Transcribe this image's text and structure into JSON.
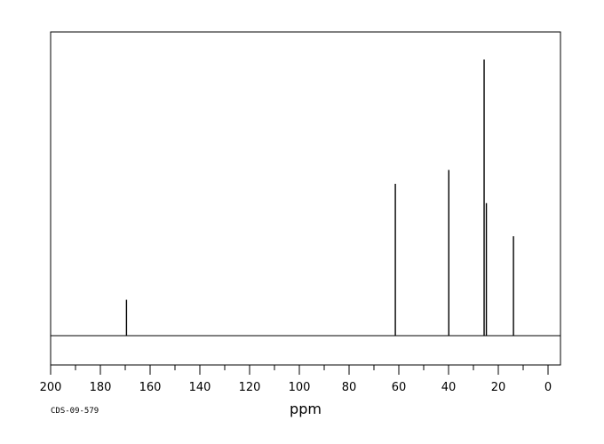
{
  "chart_data": {
    "type": "line",
    "title": "",
    "xlabel": "ppm",
    "ylabel": "",
    "xlim": [
      200,
      -5
    ],
    "x_reversed": true,
    "ylim": [
      0,
      1
    ],
    "grid": false,
    "x_ticks": [
      200,
      180,
      160,
      140,
      120,
      100,
      80,
      60,
      40,
      20,
      0
    ],
    "x_tick_labels": [
      "200",
      "180",
      "160",
      "140",
      "120",
      "100",
      "80",
      "60",
      "40",
      "20",
      "0"
    ],
    "peaks": [
      {
        "ppm": 169.5,
        "height": 0.13
      },
      {
        "ppm": 61.4,
        "height": 0.55
      },
      {
        "ppm": 39.9,
        "height": 0.6
      },
      {
        "ppm": 25.7,
        "height": 1.0
      },
      {
        "ppm": 24.8,
        "height": 0.48
      },
      {
        "ppm": 13.9,
        "height": 0.36
      }
    ],
    "footer": "CDS-09-579",
    "colors": {
      "line": "#000000",
      "frame": "#000000",
      "background": "#ffffff"
    }
  }
}
